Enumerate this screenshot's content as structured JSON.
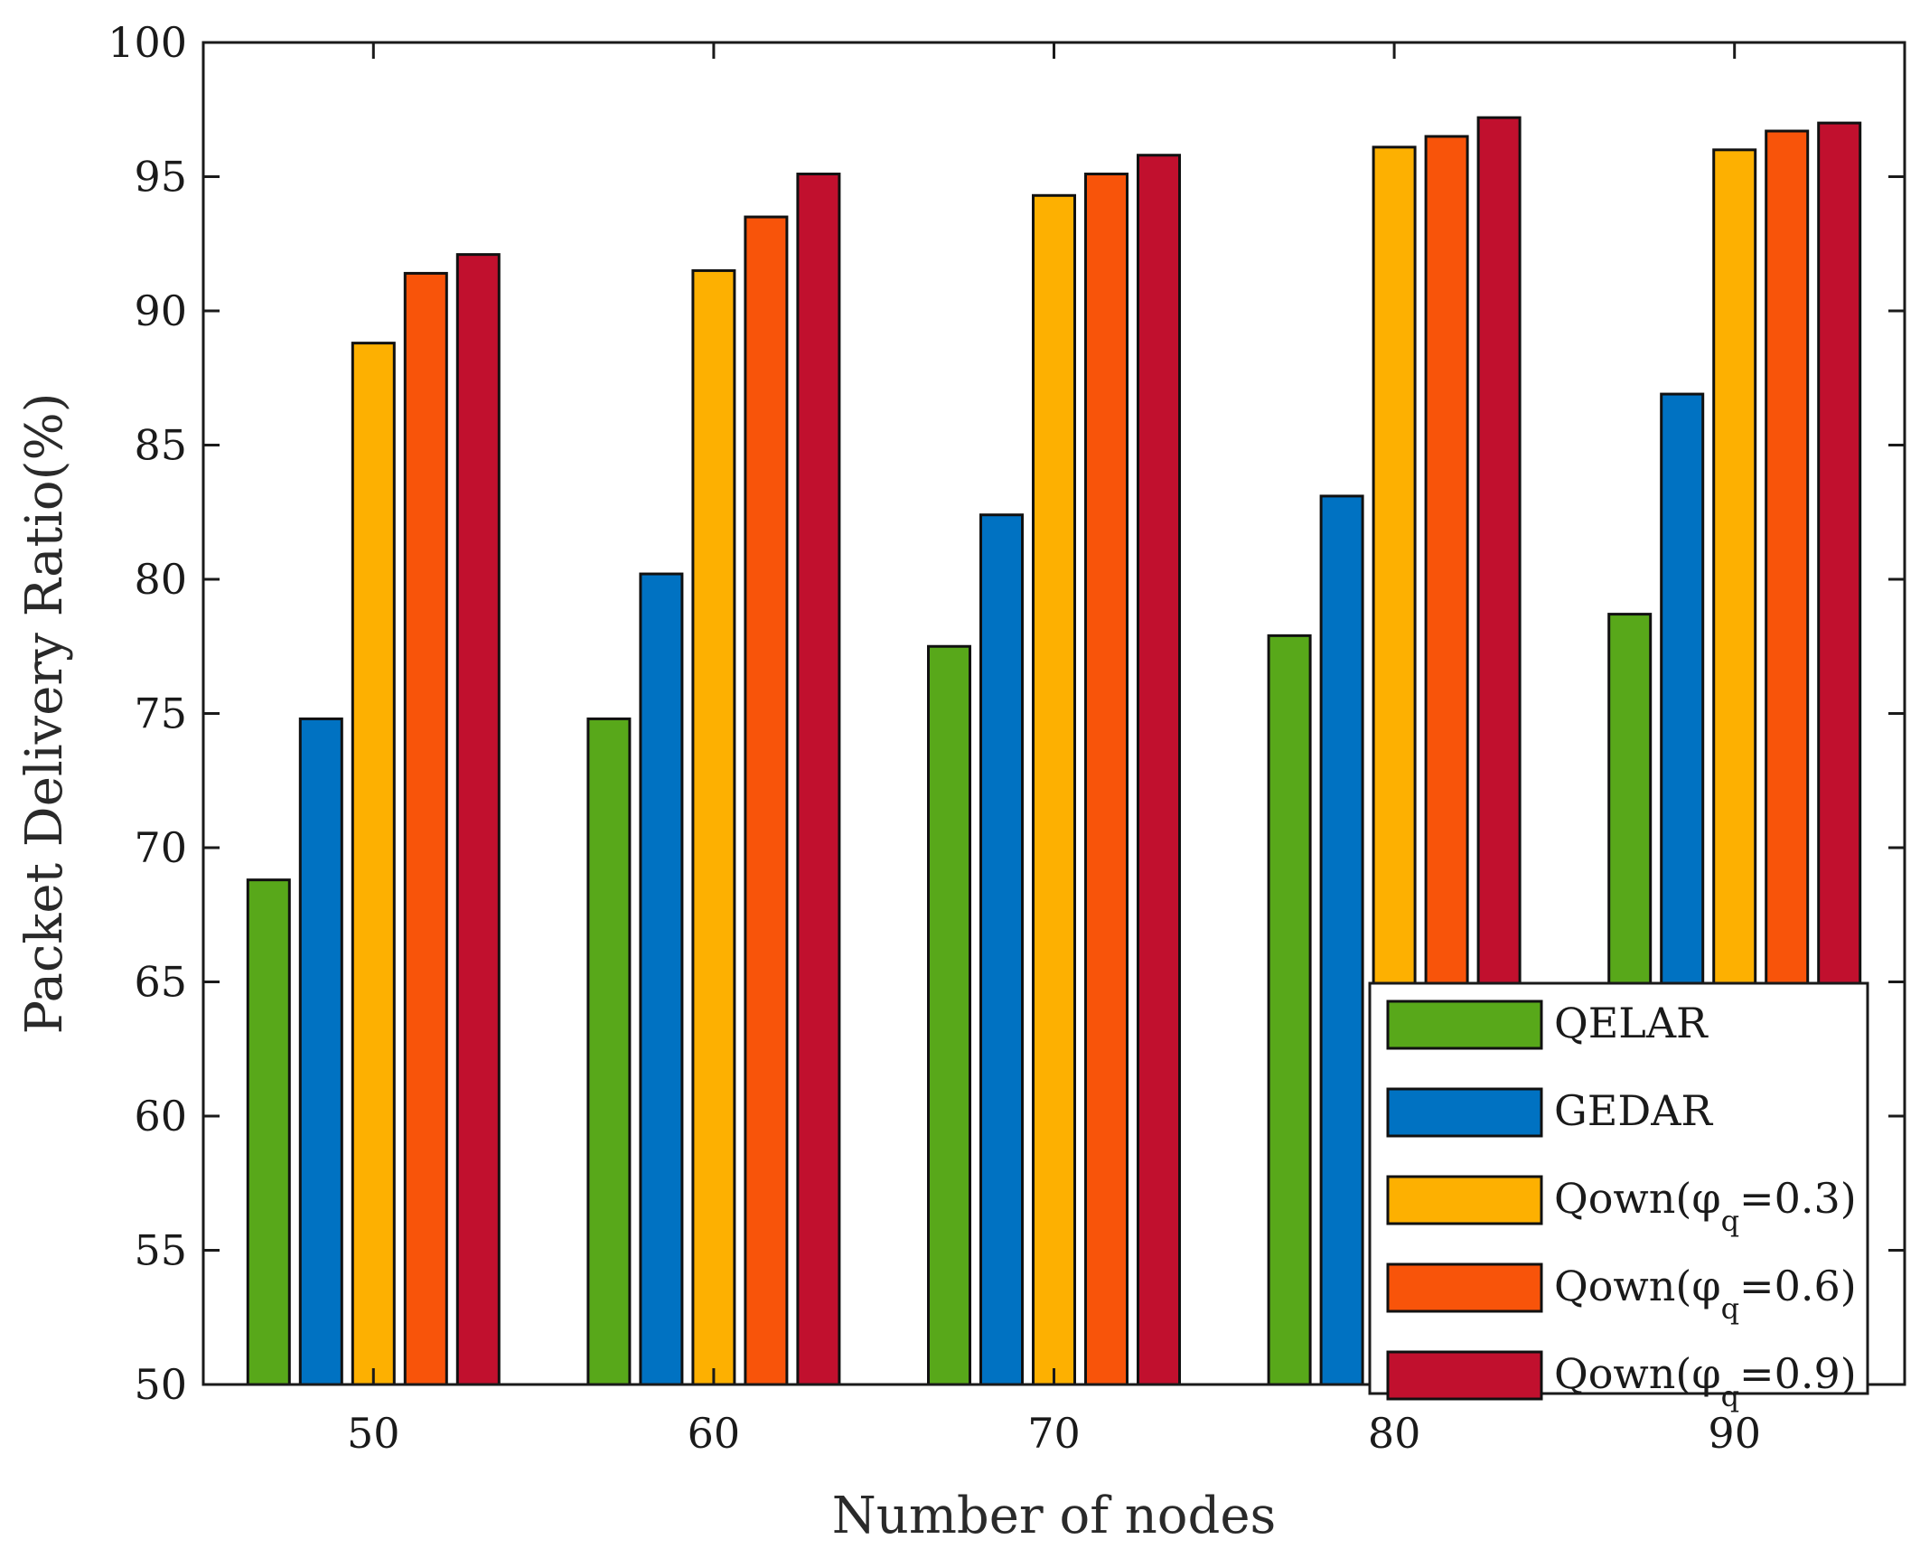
{
  "chart_data": {
    "type": "bar",
    "title": "",
    "xlabel": "Number of nodes",
    "ylabel": "Packet Delivery Ratio(%)",
    "categories": [
      "50",
      "60",
      "70",
      "80",
      "90"
    ],
    "ylim": [
      50,
      100
    ],
    "yticks": [
      50,
      55,
      60,
      65,
      70,
      75,
      80,
      85,
      90,
      95,
      100
    ],
    "yticklabels": [
      "50",
      "55",
      "60",
      "65",
      "70",
      "75",
      "80",
      "85",
      "90",
      "95",
      "100"
    ],
    "grid": false,
    "legend_position": "bottom-right",
    "series": [
      {
        "name": "QELAR",
        "color": "#58a81a",
        "values": [
          68.8,
          74.8,
          77.5,
          77.9,
          78.7
        ]
      },
      {
        "name": "GEDAR",
        "color": "#0072c2",
        "values": [
          74.8,
          80.2,
          82.4,
          83.1,
          86.9
        ]
      },
      {
        "name": "Qown(φq=0.3)",
        "label_main": "Qown(φ",
        "label_sub": "q",
        "label_tail": "=0.3)",
        "color": "#fdb001",
        "values": [
          88.8,
          91.5,
          94.3,
          96.1,
          96.0
        ]
      },
      {
        "name": "Qown(φq=0.6)",
        "label_main": "Qown(φ",
        "label_sub": "q",
        "label_tail": "=0.6)",
        "color": "#f8540a",
        "values": [
          91.4,
          93.5,
          95.1,
          96.5,
          96.7
        ]
      },
      {
        "name": "Qown(φq=0.9)",
        "label_main": "Qown(φ",
        "label_sub": "q",
        "label_tail": "=0.9)",
        "color": "#c1102e",
        "values": [
          92.1,
          95.1,
          95.8,
          97.2,
          97.0
        ]
      }
    ]
  }
}
